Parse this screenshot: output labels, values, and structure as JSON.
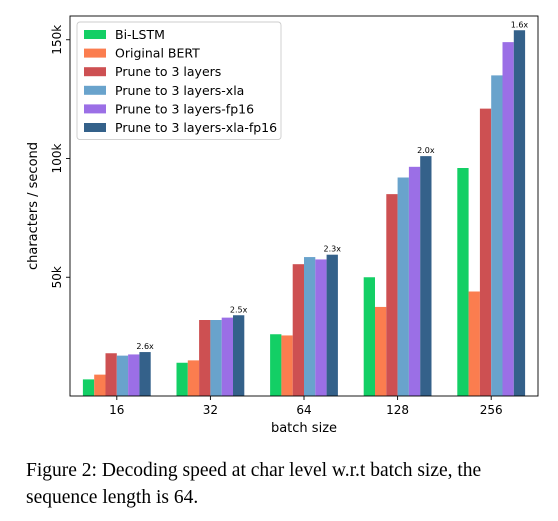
{
  "caption": "Figure 2: Decoding speed at char level w.r.t batch size, the sequence length is 64.",
  "chart_data": {
    "type": "bar",
    "xlabel": "batch size",
    "ylabel": "characters / second",
    "categories": [
      "16",
      "32",
      "64",
      "128",
      "256"
    ],
    "ylim": [
      0,
      160000
    ],
    "yticks": [
      50000,
      100000,
      150000
    ],
    "ytick_labels": [
      "50k",
      "100k",
      "150k"
    ],
    "grid": false,
    "legend_position": "top-left",
    "series": [
      {
        "name": "Bi-LSTM",
        "color": "#13cf65",
        "values": [
          7000,
          14000,
          26000,
          50000,
          96000
        ]
      },
      {
        "name": "Original BERT",
        "color": "#fb7d4f",
        "values": [
          9000,
          15000,
          25500,
          37500,
          44000
        ]
      },
      {
        "name": "Prune to 3 layers",
        "color": "#cd5052",
        "values": [
          18000,
          32000,
          55500,
          85000,
          121000
        ]
      },
      {
        "name": "Prune to 3 layers-xla",
        "color": "#69a3cc",
        "values": [
          17000,
          32000,
          58500,
          92000,
          135000
        ]
      },
      {
        "name": "Prune to 3 layers-fp16",
        "color": "#9b6fe6",
        "values": [
          17500,
          33000,
          57500,
          96500,
          149000
        ]
      },
      {
        "name": "Prune to 3 layers-xla-fp16",
        "color": "#34618a",
        "values": [
          18500,
          34000,
          59500,
          101000,
          154000
        ]
      }
    ],
    "annotations": [
      "2.6x",
      "2.5x",
      "2.3x",
      "2.0x",
      "1.6x"
    ]
  }
}
